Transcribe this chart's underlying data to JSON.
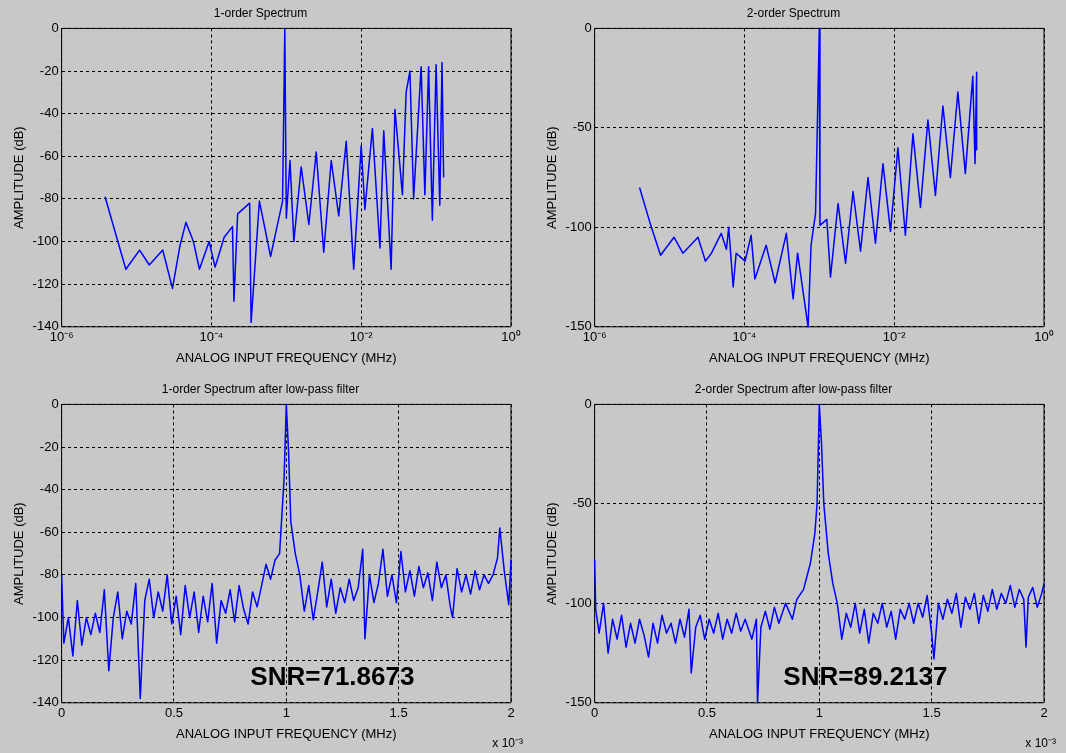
{
  "chart_data": [
    {
      "type": "line",
      "title": "1-order Spectrum",
      "xlabel": "ANALOG INPUT FREQUENCY (MHz)",
      "ylabel": "AMPLITUDE (dB)",
      "log": "x",
      "grid": true,
      "xlim": [
        1e-06,
        1
      ],
      "ylim": [
        -140,
        0
      ],
      "xticks": [
        {
          "value": 1e-06,
          "label": "10⁻⁶"
        },
        {
          "value": 0.0001,
          "label": "10⁻⁴"
        },
        {
          "value": 0.01,
          "label": "10⁻²"
        },
        {
          "value": 1,
          "label": "10⁰"
        }
      ],
      "yticks": [
        -140,
        -120,
        -100,
        -80,
        -60,
        -40,
        -20,
        0
      ],
      "series": [
        {
          "color": "#0000ff",
          "x": [
            3.8e-06,
            7.2e-06,
            1.1e-05,
            1.48e-05,
            2.24e-05,
            3.02e-05,
            3.8e-05,
            4.57e-05,
            5.75e-05,
            6.92e-05,
            9.33e-05,
            0.000112,
            0.000148,
            0.000191,
            0.0002,
            0.000224,
            0.000324,
            0.000339,
            0.000437,
            0.000617,
            0.000891,
            0.000955,
            0.001,
            0.00112,
            0.00126,
            0.00158,
            0.002,
            0.00251,
            0.00316,
            0.00398,
            0.00501,
            0.00631,
            0.00794,
            0.01,
            0.0112,
            0.0141,
            0.0178,
            0.02,
            0.0251,
            0.0282,
            0.0355,
            0.0398,
            0.0447,
            0.0501,
            0.0631,
            0.0708,
            0.0794,
            0.0891,
            0.1,
            0.112,
            0.12,
            0.126
          ],
          "values": [
            -79,
            -113,
            -104,
            -111,
            -104,
            -122,
            -102,
            -91,
            -100,
            -113,
            -100,
            -112,
            -98,
            -93,
            -128,
            -87,
            -82,
            -138,
            -81,
            -107,
            -81,
            0,
            -89,
            -62,
            -100,
            -65,
            -92,
            -58,
            -105,
            -62,
            -88,
            -53,
            -113,
            -55,
            -85,
            -47,
            -103,
            -48,
            -113,
            -38,
            -78,
            -30,
            -20,
            -80,
            -18,
            -78,
            -18,
            -90,
            -17,
            -83,
            -16,
            -70
          ]
        }
      ]
    },
    {
      "type": "line",
      "title": "2-order Spectrum",
      "xlabel": "ANALOG INPUT FREQUENCY (MHz)",
      "ylabel": "AMPLITUDE (dB)",
      "log": "x",
      "grid": true,
      "xlim": [
        1e-06,
        1
      ],
      "ylim": [
        -150,
        0
      ],
      "xticks": [
        {
          "value": 1e-06,
          "label": "10⁻⁶"
        },
        {
          "value": 0.0001,
          "label": "10⁻⁴"
        },
        {
          "value": 0.01,
          "label": "10⁻²"
        },
        {
          "value": 1,
          "label": "10⁰"
        }
      ],
      "yticks": [
        -150,
        -100,
        -50,
        0
      ],
      "series": [
        {
          "color": "#0000ff",
          "x": [
            3.98e-06,
            5.62e-06,
            7.59e-06,
            1.15e-05,
            1.51e-05,
            2.4e-05,
            3.02e-05,
            3.63e-05,
            4.9e-05,
            5.75e-05,
            6.17e-05,
            7.08e-05,
            7.76e-05,
            0.000102,
            0.000123,
            0.000138,
            0.000195,
            0.000257,
            0.000363,
            0.000447,
            0.000513,
            0.000708,
            0.000776,
            0.000891,
            0.001,
            0.00102,
            0.00126,
            0.00141,
            0.00178,
            0.00224,
            0.00282,
            0.00355,
            0.00447,
            0.00562,
            0.00708,
            0.00891,
            0.0112,
            0.0141,
            0.0178,
            0.0224,
            0.0282,
            0.0355,
            0.0447,
            0.0562,
            0.0708,
            0.0891,
            0.112,
            0.12,
            0.126,
            0.126
          ],
          "values": [
            -80,
            -99,
            -114,
            -105,
            -113,
            -105,
            -117,
            -113,
            -103,
            -111,
            -100,
            -130,
            -113,
            -117,
            -104,
            -126,
            -109,
            -128,
            -103,
            -136,
            -113,
            -150,
            -109,
            -93,
            0,
            -99,
            -96,
            -125,
            -88,
            -118,
            -82,
            -112,
            -75,
            -108,
            -68,
            -102,
            -60,
            -104,
            -53,
            -90,
            -46,
            -84,
            -39,
            -75,
            -32,
            -73,
            -24,
            -68,
            -22,
            -61
          ]
        }
      ]
    },
    {
      "type": "line",
      "title": "1-order Spectrum after low-pass filter",
      "xlabel": "ANALOG INPUT FREQUENCY (MHz)",
      "ylabel": "AMPLITUDE (dB)",
      "grid": true,
      "xlim": [
        0,
        2
      ],
      "ylim": [
        -140,
        0
      ],
      "xticks": [
        0,
        0.5,
        1,
        1.5,
        2
      ],
      "yticks": [
        -140,
        -120,
        -100,
        -80,
        -60,
        -40,
        -20,
        0
      ],
      "annotations": [
        "x 10⁻³",
        "SNR=71.8673"
      ],
      "series": [
        {
          "color": "#0000ff",
          "x": [
            0,
            0.01,
            0.03,
            0.05,
            0.07,
            0.09,
            0.11,
            0.13,
            0.15,
            0.17,
            0.19,
            0.21,
            0.23,
            0.25,
            0.27,
            0.29,
            0.31,
            0.33,
            0.35,
            0.37,
            0.39,
            0.41,
            0.43,
            0.45,
            0.47,
            0.49,
            0.51,
            0.53,
            0.55,
            0.57,
            0.59,
            0.61,
            0.63,
            0.65,
            0.67,
            0.69,
            0.71,
            0.73,
            0.75,
            0.77,
            0.79,
            0.81,
            0.83,
            0.85,
            0.87,
            0.89,
            0.91,
            0.93,
            0.95,
            0.97,
            0.99,
            1.0,
            1.01,
            1.02,
            1.04,
            1.06,
            1.08,
            1.1,
            1.12,
            1.14,
            1.16,
            1.18,
            1.2,
            1.22,
            1.24,
            1.26,
            1.28,
            1.3,
            1.32,
            1.34,
            1.35,
            1.37,
            1.39,
            1.41,
            1.43,
            1.45,
            1.47,
            1.49,
            1.51,
            1.53,
            1.55,
            1.57,
            1.59,
            1.61,
            1.63,
            1.65,
            1.67,
            1.69,
            1.71,
            1.73,
            1.74,
            1.76,
            1.78,
            1.8,
            1.82,
            1.84,
            1.86,
            1.88,
            1.9,
            1.92,
            1.94,
            1.95,
            1.97,
            1.99,
            2.0
          ],
          "values": [
            -80,
            -112,
            -100,
            -118,
            -92,
            -113,
            -100,
            -108,
            -98,
            -107,
            -87,
            -125,
            -100,
            -88,
            -110,
            -97,
            -103,
            -84,
            -138,
            -92,
            -82,
            -100,
            -88,
            -97,
            -80,
            -103,
            -90,
            -108,
            -85,
            -100,
            -88,
            -107,
            -90,
            -102,
            -84,
            -112,
            -92,
            -98,
            -87,
            -102,
            -85,
            -96,
            -103,
            -88,
            -95,
            -85,
            -75,
            -82,
            -73,
            -70,
            -35,
            0,
            -22,
            -55,
            -70,
            -80,
            -97,
            -85,
            -101,
            -88,
            -74,
            -95,
            -82,
            -98,
            -86,
            -93,
            -82,
            -92,
            -86,
            -68,
            -110,
            -80,
            -93,
            -84,
            -68,
            -90,
            -80,
            -93,
            -69,
            -88,
            -78,
            -90,
            -76,
            -86,
            -79,
            -92,
            -74,
            -86,
            -80,
            -95,
            -100,
            -77,
            -88,
            -80,
            -89,
            -78,
            -87,
            -80,
            -84,
            -80,
            -72,
            -58,
            -78,
            -94,
            -73
          ]
        }
      ]
    },
    {
      "type": "line",
      "title": "2-order Spectrum after low-pass filter",
      "xlabel": "ANALOG INPUT FREQUENCY (MHz)",
      "ylabel": "AMPLITUDE (dB)",
      "grid": true,
      "xlim": [
        0,
        2
      ],
      "ylim": [
        -150,
        0
      ],
      "xticks": [
        0,
        0.5,
        1,
        1.5,
        2
      ],
      "yticks": [
        -150,
        -100,
        -50,
        0
      ],
      "annotations": [
        "x 10⁻³",
        "SNR=89.2137"
      ],
      "series": [
        {
          "color": "#0000ff",
          "x": [
            0,
            0.005,
            0.02,
            0.04,
            0.06,
            0.08,
            0.1,
            0.12,
            0.14,
            0.16,
            0.18,
            0.2,
            0.22,
            0.24,
            0.26,
            0.28,
            0.3,
            0.32,
            0.34,
            0.36,
            0.38,
            0.4,
            0.42,
            0.43,
            0.45,
            0.47,
            0.49,
            0.51,
            0.53,
            0.55,
            0.57,
            0.59,
            0.61,
            0.63,
            0.65,
            0.67,
            0.7,
            0.72,
            0.725,
            0.74,
            0.76,
            0.78,
            0.8,
            0.82,
            0.85,
            0.88,
            0.9,
            0.93,
            0.96,
            0.98,
            0.99,
            1.0,
            1.01,
            1.02,
            1.04,
            1.06,
            1.08,
            1.1,
            1.12,
            1.14,
            1.16,
            1.18,
            1.2,
            1.22,
            1.24,
            1.26,
            1.28,
            1.3,
            1.32,
            1.34,
            1.36,
            1.38,
            1.4,
            1.42,
            1.44,
            1.46,
            1.48,
            1.5,
            1.51,
            1.53,
            1.55,
            1.57,
            1.59,
            1.61,
            1.63,
            1.65,
            1.67,
            1.69,
            1.71,
            1.73,
            1.75,
            1.77,
            1.79,
            1.81,
            1.83,
            1.85,
            1.87,
            1.89,
            1.91,
            1.92,
            1.93,
            1.95,
            1.97,
            1.99,
            2.0
          ],
          "values": [
            -78,
            -103,
            -115,
            -100,
            -125,
            -108,
            -118,
            -106,
            -122,
            -110,
            -120,
            -108,
            -116,
            -127,
            -110,
            -120,
            -106,
            -115,
            -110,
            -120,
            -108,
            -117,
            -103,
            -135,
            -112,
            -106,
            -118,
            -108,
            -115,
            -105,
            -118,
            -108,
            -115,
            -105,
            -114,
            -108,
            -118,
            -108,
            -150,
            -112,
            -104,
            -113,
            -102,
            -110,
            -100,
            -108,
            -98,
            -93,
            -80,
            -65,
            -50,
            0,
            -20,
            -50,
            -75,
            -90,
            -100,
            -118,
            -105,
            -112,
            -100,
            -115,
            -103,
            -120,
            -105,
            -110,
            -100,
            -112,
            -104,
            -118,
            -103,
            -108,
            -100,
            -110,
            -100,
            -107,
            -96,
            -115,
            -128,
            -100,
            -108,
            -98,
            -105,
            -95,
            -112,
            -97,
            -103,
            -95,
            -110,
            -96,
            -104,
            -93,
            -103,
            -95,
            -100,
            -91,
            -102,
            -93,
            -98,
            -122,
            -97,
            -92,
            -102,
            -95,
            -90
          ]
        }
      ]
    }
  ]
}
